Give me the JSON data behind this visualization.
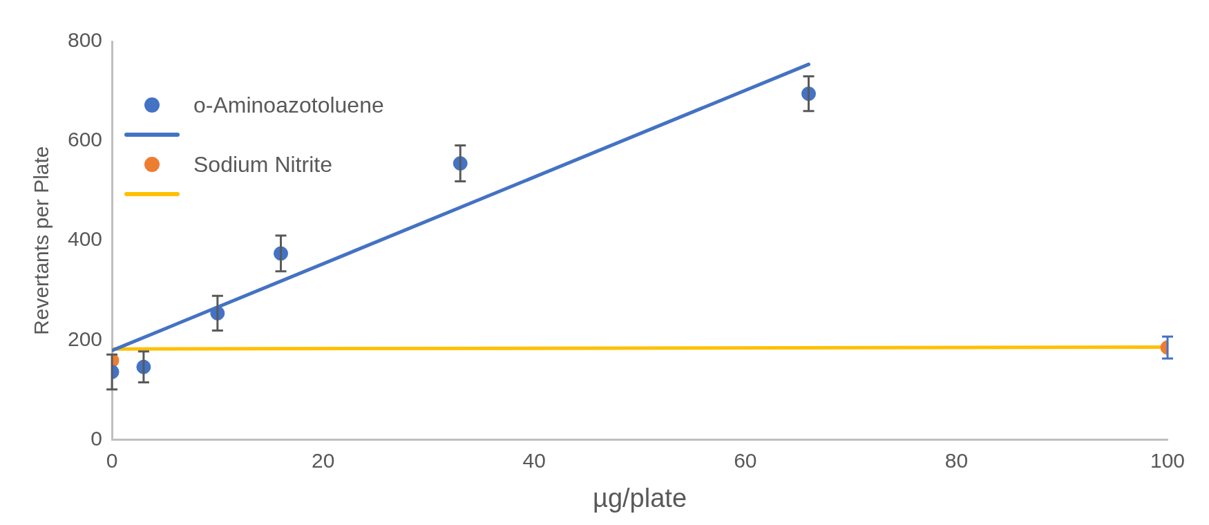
{
  "chart_data": {
    "type": "scatter",
    "xlabel": "µg/plate",
    "ylabel": "Revertants per Plate",
    "xlim": [
      0,
      100
    ],
    "xticks": [
      0,
      20,
      40,
      60,
      80,
      100
    ],
    "ylim": [
      0,
      800
    ],
    "yticks": [
      0,
      200,
      400,
      600,
      800
    ],
    "grid": false,
    "legend": "top left",
    "marker": "circle",
    "series": [
      {
        "name": "o-Aminoazotoluene",
        "color": "#4472c4",
        "x": [
          0,
          3,
          10,
          16,
          33,
          66
        ],
        "values": [
          136,
          146,
          254,
          374,
          555,
          695
        ],
        "errors": [
          35,
          31,
          35,
          36,
          36,
          35
        ]
      },
      {
        "type": "line",
        "color": "#4472c4",
        "marker": "none",
        "x": [
          0,
          66
        ],
        "values": [
          179,
          754
        ]
      },
      {
        "name": "Sodium Nitrite",
        "color": "#ed7d31",
        "x": [
          0,
          100
        ],
        "values": [
          159,
          185
        ],
        "errors": [
          null,
          22
        ]
      },
      {
        "type": "line",
        "color": "#ffc000",
        "marker": "none",
        "x": [
          0,
          100
        ],
        "values": [
          182,
          186
        ]
      }
    ]
  }
}
